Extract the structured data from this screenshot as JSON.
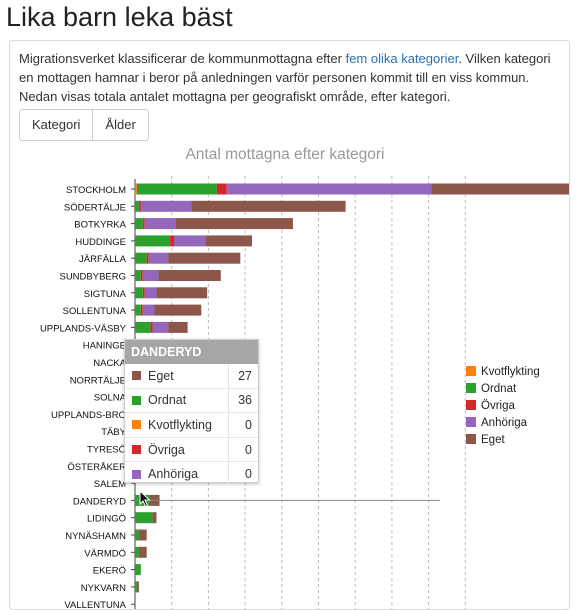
{
  "page": {
    "title": "Lika barn leka bäst"
  },
  "intro": {
    "text_before": "Migrationsverket klassificerar de kommunmottagna efter ",
    "link_text": "fem olika kategorier",
    "text_after": ". Vilken kategori en mottagen hamnar i beror på anledningen varför personen kommit till en viss kommun. Nedan visas totala antalet mottagna per geografiskt område, efter kategori."
  },
  "tabs": [
    {
      "label": "Kategori"
    },
    {
      "label": "Ålder"
    }
  ],
  "colors": {
    "Kvotflykting": "#ff7f0e",
    "Ordnat": "#2ca02c",
    "Övriga": "#d62728",
    "Anhöriga": "#9467bd",
    "Eget": "#8c564b"
  },
  "chart_data": {
    "type": "bar",
    "orientation": "horizontal",
    "stacked": true,
    "title": "Antal mottagna efter kategori",
    "xlabel": "",
    "ylabel": "",
    "grid": "vertical dashed",
    "legend_position": "right",
    "categories": [
      "STOCKHOLM",
      "SÖDERTÄLJE",
      "BOTKYRKA",
      "HUDDINGE",
      "JÄRFÄLLA",
      "SUNDBYBERG",
      "SIGTUNA",
      "SOLLENTUNA",
      "UPPLANDS-VÄSBY",
      "HANINGE",
      "NACKA",
      "NORRTÄLJE",
      "SOLNA",
      "UPPLANDS-BRO",
      "TÄBY",
      "TYRESÖ",
      "ÖSTERÅKER",
      "SALEM",
      "DANDERYD",
      "LIDINGÖ",
      "NYNÄSHAMN",
      "VÄRMDÖ",
      "EKERÖ",
      "NYKVARN",
      "VALLENTUNA"
    ],
    "series": [
      {
        "name": "Kvotflykting",
        "values": [
          5,
          0,
          0,
          0,
          0,
          0,
          0,
          0,
          0,
          0,
          0,
          0,
          0,
          0,
          0,
          0,
          0,
          0,
          0,
          0,
          0,
          0,
          0,
          0,
          0
        ]
      },
      {
        "name": "Ordnat",
        "values": [
          205,
          10,
          20,
          90,
          30,
          15,
          20,
          15,
          40,
          0,
          0,
          0,
          0,
          0,
          0,
          0,
          0,
          0,
          36,
          45,
          10,
          10,
          15,
          5,
          0
        ]
      },
      {
        "name": "Övriga",
        "values": [
          25,
          5,
          5,
          10,
          5,
          5,
          5,
          5,
          5,
          0,
          0,
          0,
          0,
          0,
          0,
          0,
          0,
          0,
          0,
          0,
          0,
          0,
          0,
          0,
          0
        ]
      },
      {
        "name": "Anhöriga",
        "values": [
          525,
          130,
          80,
          80,
          50,
          40,
          30,
          30,
          40,
          0,
          0,
          0,
          0,
          0,
          0,
          0,
          0,
          0,
          0,
          0,
          0,
          0,
          0,
          0,
          0
        ]
      },
      {
        "name": "Eget",
        "values": [
          1020,
          395,
          300,
          120,
          185,
          160,
          130,
          120,
          50,
          0,
          0,
          0,
          0,
          0,
          0,
          0,
          0,
          0,
          27,
          10,
          20,
          20,
          0,
          5,
          0
        ]
      }
    ],
    "xlim": [
      0,
      2000
    ]
  },
  "tooltip": {
    "title": "DANDERYD",
    "rows": [
      {
        "name": "Eget",
        "value": "27"
      },
      {
        "name": "Ordnat",
        "value": "36"
      },
      {
        "name": "Kvotflykting",
        "value": "0"
      },
      {
        "name": "Övriga",
        "value": "0"
      },
      {
        "name": "Anhöriga",
        "value": "0"
      }
    ]
  }
}
